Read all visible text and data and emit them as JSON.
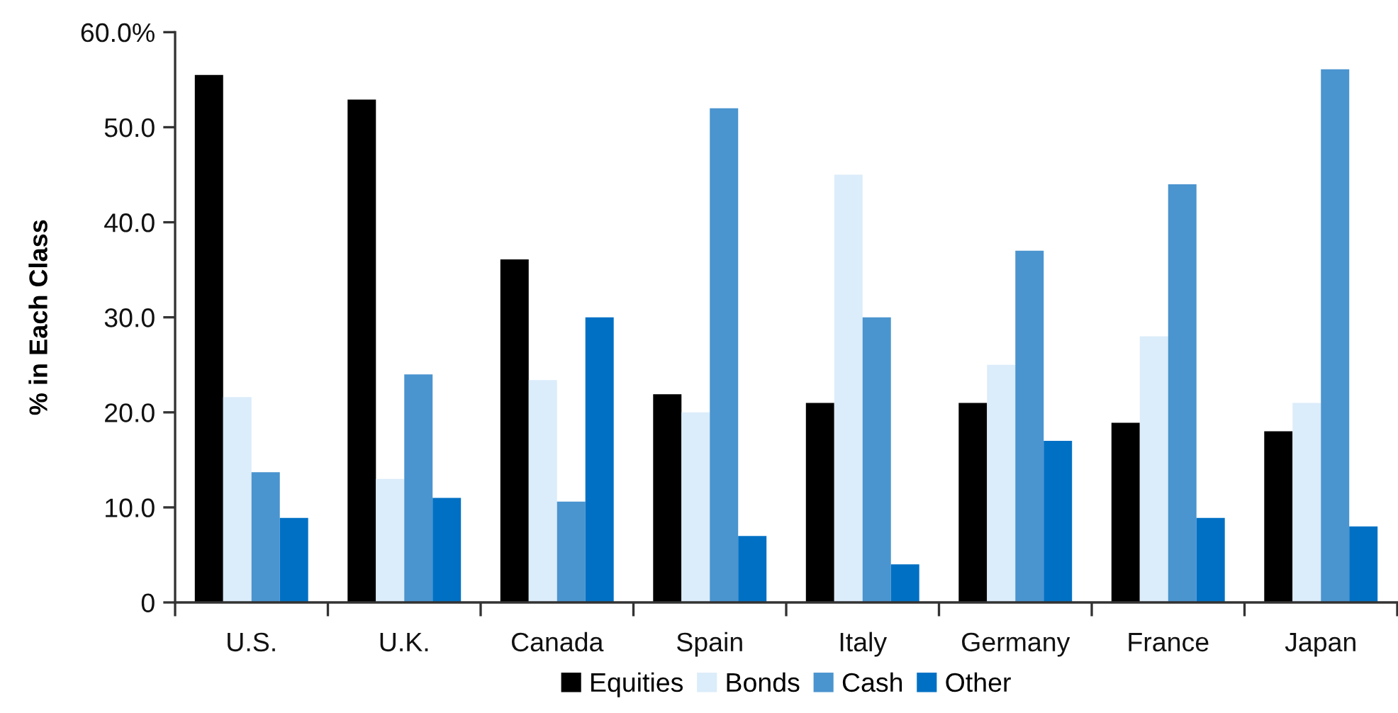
{
  "chart_data": {
    "type": "bar",
    "ylabel": "% in Each Class",
    "categories": [
      "U.S.",
      "U.K.",
      "Canada",
      "Spain",
      "Italy",
      "Germany",
      "France",
      "Japan"
    ],
    "series": [
      {
        "name": "Equities",
        "color": "#000000",
        "values": [
          55.5,
          52.9,
          36.1,
          21.9,
          21.0,
          21.0,
          18.9,
          18.0
        ]
      },
      {
        "name": "Bonds",
        "color": "#dbecfa",
        "values": [
          21.6,
          13.0,
          23.4,
          20.0,
          45.0,
          25.0,
          28.0,
          21.0
        ]
      },
      {
        "name": "Cash",
        "color": "#4a94cf",
        "values": [
          13.7,
          24.0,
          10.6,
          52.0,
          30.0,
          37.0,
          44.0,
          56.1
        ]
      },
      {
        "name": "Other",
        "color": "#0070c4",
        "values": [
          8.9,
          11.0,
          30.0,
          7.0,
          4.0,
          17.0,
          8.9,
          8.0
        ]
      }
    ],
    "ylim": [
      0,
      60
    ],
    "yticks": [
      {
        "value": 0,
        "label": "0"
      },
      {
        "value": 10,
        "label": "10.0"
      },
      {
        "value": 20,
        "label": "20.0"
      },
      {
        "value": 30,
        "label": "30.0"
      },
      {
        "value": 40,
        "label": "40.0"
      },
      {
        "value": 50,
        "label": "50.0"
      },
      {
        "value": 60,
        "label": "60.0%"
      }
    ],
    "grid": false,
    "legend": "bottom"
  }
}
